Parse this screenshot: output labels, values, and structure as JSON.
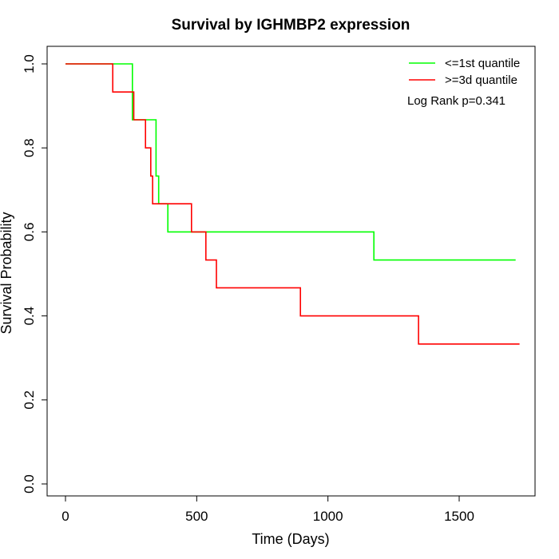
{
  "chart_data": {
    "type": "line",
    "step": true,
    "title": "Survival by IGHMBP2 expression",
    "xlabel": "Time (Days)",
    "ylabel": "Survival Probability",
    "xlim": [
      0,
      1750
    ],
    "ylim": [
      0,
      1.0
    ],
    "x_ticks": [
      0,
      500,
      1000,
      1500
    ],
    "x_tick_labels": [
      "0",
      "500",
      "1000",
      "1500"
    ],
    "y_ticks": [
      0.0,
      0.2,
      0.4,
      0.6,
      0.8,
      1.0
    ],
    "y_tick_labels": [
      "0.0",
      "0.2",
      "0.4",
      "0.6",
      "0.8",
      "1.0"
    ],
    "grid": false,
    "legend_position": "top-right",
    "annotation": "Log Rank p=0.341",
    "series": [
      {
        "name": "<=1st quantile",
        "color": "#00ff00",
        "x": [
          0,
          255,
          255,
          345,
          345,
          355,
          355,
          390,
          390,
          1175,
          1175,
          1715
        ],
        "y": [
          1.0,
          1.0,
          0.867,
          0.867,
          0.733,
          0.733,
          0.667,
          0.667,
          0.6,
          0.6,
          0.533,
          0.533
        ]
      },
      {
        "name": ">=3d quantile",
        "color": "#ff0000",
        "x": [
          0,
          180,
          180,
          260,
          260,
          305,
          305,
          325,
          325,
          332,
          332,
          480,
          480,
          535,
          535,
          575,
          575,
          895,
          895,
          1345,
          1345,
          1730
        ],
        "y": [
          1.0,
          1.0,
          0.933,
          0.933,
          0.867,
          0.867,
          0.8,
          0.8,
          0.733,
          0.733,
          0.667,
          0.667,
          0.6,
          0.6,
          0.533,
          0.533,
          0.467,
          0.467,
          0.4,
          0.4,
          0.333,
          0.333
        ]
      }
    ]
  }
}
